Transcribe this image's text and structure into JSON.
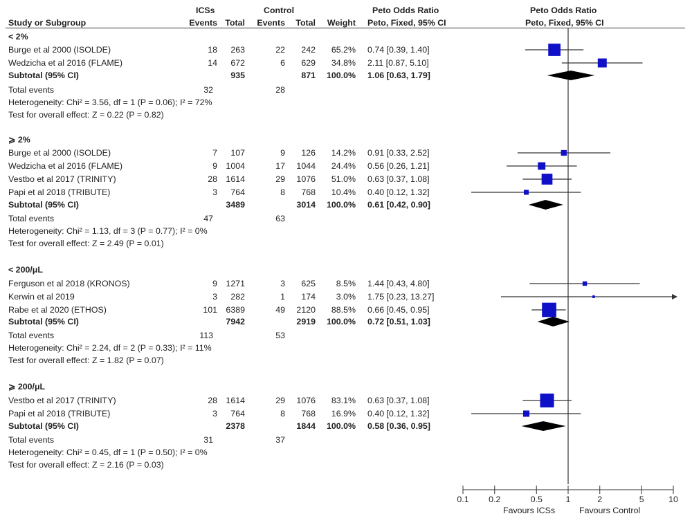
{
  "header": {
    "icss": "ICSs",
    "control": "Control",
    "peto_left": "Peto Odds Ratio",
    "peto_right": "Peto Odds Ratio",
    "study": "Study or Subgroup",
    "events1": "Events",
    "total1": "Total",
    "events2": "Events",
    "total2": "Total",
    "weight": "Weight",
    "method_left": "Peto, Fixed, 95% CI",
    "method_right": "Peto, Fixed, 95% CI"
  },
  "subgroups": [
    {
      "title": "< 2%",
      "studies": [
        {
          "name": "Burge et al 2000 (ISOLDE)",
          "e1": "18",
          "t1": "263",
          "e2": "22",
          "t2": "242",
          "weight": "65.2%",
          "ci": "0.74 [0.39, 1.40]"
        },
        {
          "name": "Wedzicha et al 2016 (FLAME)",
          "e1": "14",
          "t1": "672",
          "e2": "6",
          "t2": "629",
          "weight": "34.8%",
          "ci": "2.11 [0.87, 5.10]"
        }
      ],
      "subtotal": {
        "label": "Subtotal (95% CI)",
        "t1": "935",
        "t2": "871",
        "weight": "100.0%",
        "ci": "1.06 [0.63, 1.79]"
      },
      "events_label": "Total events",
      "events1": "32",
      "events2": "28",
      "heterogeneity": "Heterogeneity: Chi² = 3.56, df = 1 (P = 0.06); I² = 72%",
      "overall": "Test for overall effect: Z = 0.22 (P = 0.82)"
    },
    {
      "title": "⩾ 2%",
      "studies": [
        {
          "name": "Burge et al 2000 (ISOLDE)",
          "e1": "7",
          "t1": "107",
          "e2": "9",
          "t2": "126",
          "weight": "14.2%",
          "ci": "0.91 [0.33, 2.52]"
        },
        {
          "name": "Wedzicha et al 2016 (FLAME)",
          "e1": "9",
          "t1": "1004",
          "e2": "17",
          "t2": "1044",
          "weight": "24.4%",
          "ci": "0.56 [0.26, 1.21]"
        },
        {
          "name": "Vestbo et al 2017 (TRINITY)",
          "e1": "28",
          "t1": "1614",
          "e2": "29",
          "t2": "1076",
          "weight": "51.0%",
          "ci": "0.63 [0.37, 1.08]"
        },
        {
          "name": "Papi et al 2018 (TRIBUTE)",
          "e1": "3",
          "t1": "764",
          "e2": "8",
          "t2": "768",
          "weight": "10.4%",
          "ci": "0.40 [0.12, 1.32]"
        }
      ],
      "subtotal": {
        "label": "Subtotal (95% CI)",
        "t1": "3489",
        "t2": "3014",
        "weight": "100.0%",
        "ci": "0.61 [0.42, 0.90]"
      },
      "events_label": "Total events",
      "events1": "47",
      "events2": "63",
      "heterogeneity": "Heterogeneity: Chi² = 1.13, df = 3 (P = 0.77); I² = 0%",
      "overall": "Test for overall effect: Z = 2.49 (P = 0.01)"
    },
    {
      "title": "< 200/μL",
      "studies": [
        {
          "name": "Ferguson et al 2018 (KRONOS)",
          "e1": "9",
          "t1": "1271",
          "e2": "3",
          "t2": "625",
          "weight": "8.5%",
          "ci": "1.44 [0.43, 4.80]"
        },
        {
          "name": "Kerwin et al 2019",
          "e1": "3",
          "t1": "282",
          "e2": "1",
          "t2": "174",
          "weight": "3.0%",
          "ci": "1.75 [0.23, 13.27]"
        },
        {
          "name": "Rabe et al 2020 (ETHOS)",
          "e1": "101",
          "t1": "6389",
          "e2": "49",
          "t2": "2120",
          "weight": "88.5%",
          "ci": "0.66 [0.45, 0.95]"
        }
      ],
      "subtotal": {
        "label": "Subtotal (95% CI)",
        "t1": "7942",
        "t2": "2919",
        "weight": "100.0%",
        "ci": "0.72 [0.51, 1.03]"
      },
      "events_label": "Total events",
      "events1": "113",
      "events2": "53",
      "heterogeneity": "Heterogeneity: Chi² = 2.24, df = 2 (P = 0.33); I² = 11%",
      "overall": "Test for overall effect: Z = 1.82 (P = 0.07)"
    },
    {
      "title": "⩾ 200/μL",
      "studies": [
        {
          "name": "Vestbo et al 2017 (TRINITY)",
          "e1": "28",
          "t1": "1614",
          "e2": "29",
          "t2": "1076",
          "weight": "83.1%",
          "ci": "0.63 [0.37, 1.08]"
        },
        {
          "name": "Papi et al 2018 (TRIBUTE)",
          "e1": "3",
          "t1": "764",
          "e2": "8",
          "t2": "768",
          "weight": "16.9%",
          "ci": "0.40 [0.12, 1.32]"
        }
      ],
      "subtotal": {
        "label": "Subtotal (95% CI)",
        "t1": "2378",
        "t2": "1844",
        "weight": "100.0%",
        "ci": "0.58 [0.36, 0.95]"
      },
      "events_label": "Total events",
      "events1": "31",
      "events2": "37",
      "heterogeneity": "Heterogeneity: Chi² = 0.45, df = 1 (P = 0.50); I² = 0%",
      "overall": "Test for overall effect: Z = 2.16 (P = 0.03)"
    }
  ],
  "axis": {
    "ticks": [
      "0.1",
      "0.2",
      "0.5",
      "1",
      "2",
      "5",
      "10"
    ],
    "favours_left": "Favours ICSs",
    "favours_right": "Favours Control"
  },
  "colors": {
    "marker": "#1010c8",
    "diamond": "#000000",
    "line": "#333333"
  },
  "chart_data": {
    "type": "forest",
    "scale": "log",
    "xlim": [
      0.1,
      10
    ],
    "null_value": 1,
    "xlabel_left": "Favours ICSs",
    "xlabel_right": "Favours Control",
    "groups": [
      {
        "name": "< 2%",
        "studies": [
          {
            "or": 0.74,
            "lo": 0.39,
            "hi": 1.4,
            "weight": 65.2
          },
          {
            "or": 2.11,
            "lo": 0.87,
            "hi": 5.1,
            "weight": 34.8
          }
        ],
        "pooled": {
          "or": 1.06,
          "lo": 0.63,
          "hi": 1.79
        }
      },
      {
        "name": "⩾ 2%",
        "studies": [
          {
            "or": 0.91,
            "lo": 0.33,
            "hi": 2.52,
            "weight": 14.2
          },
          {
            "or": 0.56,
            "lo": 0.26,
            "hi": 1.21,
            "weight": 24.4
          },
          {
            "or": 0.63,
            "lo": 0.37,
            "hi": 1.08,
            "weight": 51.0
          },
          {
            "or": 0.4,
            "lo": 0.12,
            "hi": 1.32,
            "weight": 10.4
          }
        ],
        "pooled": {
          "or": 0.61,
          "lo": 0.42,
          "hi": 0.9
        }
      },
      {
        "name": "< 200/μL",
        "studies": [
          {
            "or": 1.44,
            "lo": 0.43,
            "hi": 4.8,
            "weight": 8.5
          },
          {
            "or": 1.75,
            "lo": 0.23,
            "hi": 13.27,
            "weight": 3.0
          },
          {
            "or": 0.66,
            "lo": 0.45,
            "hi": 0.95,
            "weight": 88.5
          }
        ],
        "pooled": {
          "or": 0.72,
          "lo": 0.51,
          "hi": 1.03
        }
      },
      {
        "name": "⩾ 200/μL",
        "studies": [
          {
            "or": 0.63,
            "lo": 0.37,
            "hi": 1.08,
            "weight": 83.1
          },
          {
            "or": 0.4,
            "lo": 0.12,
            "hi": 1.32,
            "weight": 16.9
          }
        ],
        "pooled": {
          "or": 0.58,
          "lo": 0.36,
          "hi": 0.95
        }
      }
    ]
  }
}
